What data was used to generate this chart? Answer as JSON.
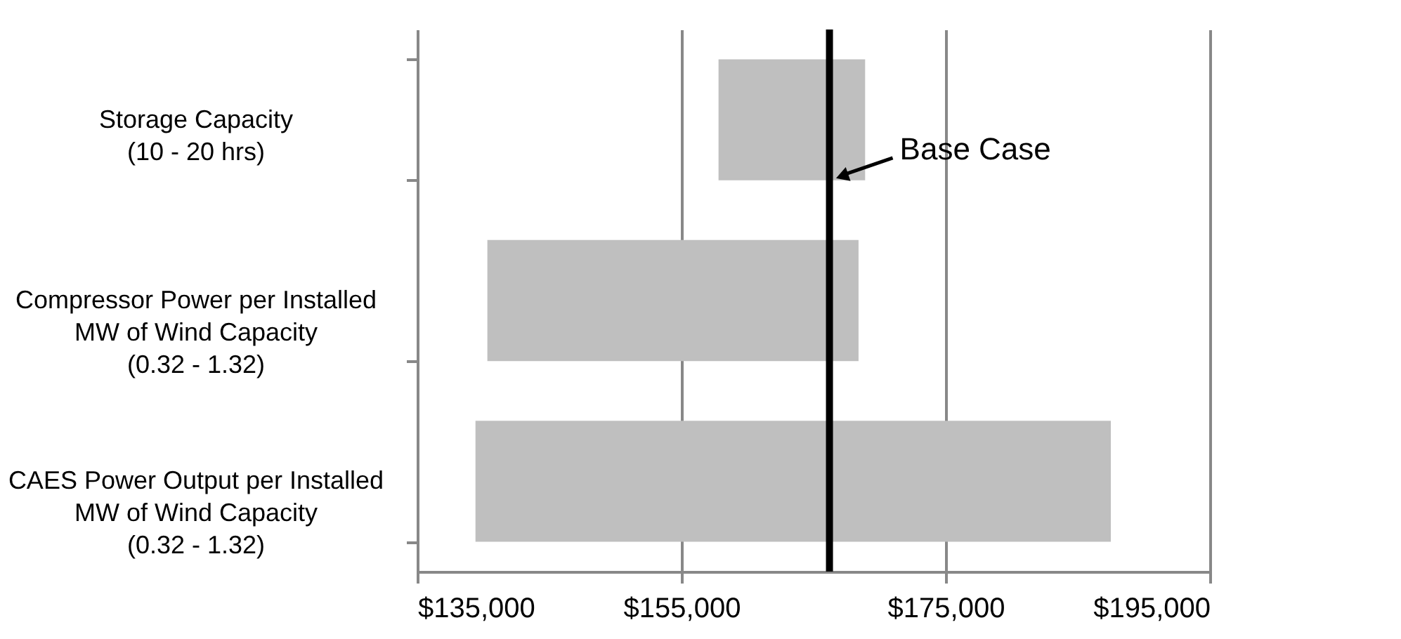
{
  "chart_data": {
    "type": "bar",
    "orientation": "horizontal",
    "categories": [
      "Storage Capacity\n(10 - 20 hrs)",
      "Compressor Power per Installed\nMW of Wind Capacity\n(0.32 - 1.32)",
      "CAES Power Output per Installed\nMW of Wind Capacity\n(0.32 - 1.32)"
    ],
    "base": [
      157800,
      140300,
      139400
    ],
    "values": [
      11100,
      28100,
      48100
    ],
    "color": "#bfbfbf",
    "xlim": [
      135000,
      195000
    ],
    "xticks": [
      {
        "value": 135000,
        "label": "$135,000"
      },
      {
        "value": 155000,
        "label": "$155,000"
      },
      {
        "value": 175000,
        "label": "$175,000"
      },
      {
        "value": 195000,
        "label": "$195,000"
      }
    ],
    "grid": "x",
    "ref_lines": [
      {
        "axis": "x",
        "value": 166200,
        "label": "Base Case",
        "color": "#000000"
      }
    ]
  }
}
